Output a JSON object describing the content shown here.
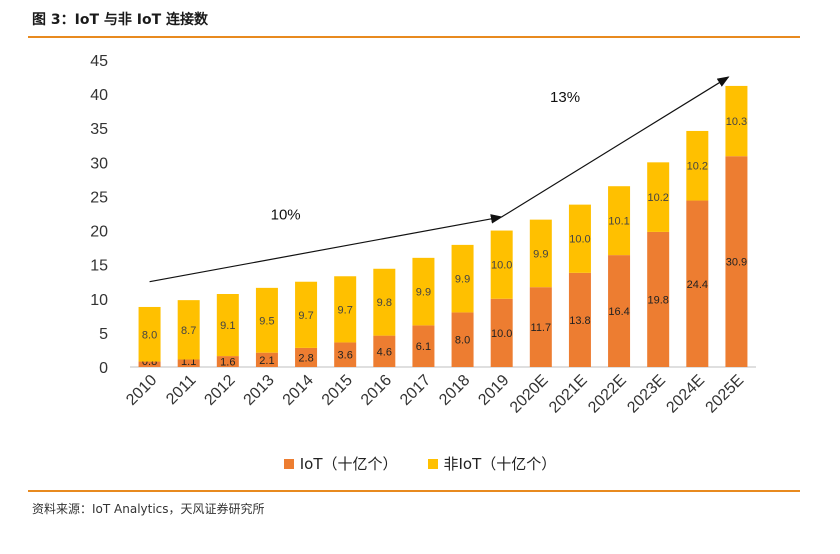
{
  "header": {
    "title": "图 3：IoT 与非 IoT 连接数"
  },
  "footer": {
    "source": "资料来源：IoT Analytics，天风证券研究所"
  },
  "colors": {
    "iot": "#ED7D31",
    "non_iot": "#FFC000",
    "rule": "#E88A1F"
  },
  "chart_data": {
    "type": "bar",
    "stacked": true,
    "categories": [
      "2010",
      "2011",
      "2012",
      "2013",
      "2014",
      "2015",
      "2016",
      "2017",
      "2018",
      "2019",
      "2020E",
      "2021E",
      "2022E",
      "2023E",
      "2024E",
      "2025E"
    ],
    "series": [
      {
        "name": "IoT（十亿个）",
        "values": [
          0.8,
          1.1,
          1.6,
          2.1,
          2.8,
          3.6,
          4.6,
          6.1,
          8.0,
          10.0,
          11.7,
          13.8,
          16.4,
          19.8,
          24.4,
          30.9
        ],
        "labels": [
          "0.8",
          "1.1",
          "1.6",
          "2.1",
          "2.8",
          "3.6",
          "4.6",
          "6.1",
          "8.0",
          "10.0",
          "11.7",
          "13.8",
          "16.4",
          "19.8",
          "24.4",
          "30.9"
        ]
      },
      {
        "name": "非IoT（十亿个）",
        "values": [
          8.0,
          8.7,
          9.1,
          9.5,
          9.7,
          9.7,
          9.8,
          9.9,
          9.9,
          10.0,
          9.9,
          10.0,
          10.1,
          10.2,
          10.2,
          10.3
        ],
        "labels": [
          "8.0",
          "8.7",
          "9.1",
          "9.5",
          "9.7",
          "9.7",
          "9.8",
          "9.9",
          "9.9",
          "10.0",
          "9.9",
          "10.0",
          "10.1",
          "10.2",
          "10.2",
          "10.3"
        ]
      }
    ],
    "y_ticks": [
      "0",
      "5",
      "10",
      "15",
      "20",
      "25",
      "30",
      "35",
      "40",
      "45"
    ],
    "ylim": [
      0,
      45
    ],
    "annotations": [
      {
        "text": "10%",
        "arrow_from": [
          "2010",
          12.5
        ],
        "arrow_to": [
          "2019",
          22
        ]
      },
      {
        "text": "13%",
        "arrow_from": [
          "2019",
          22
        ],
        "arrow_to": [
          "2025E",
          42.5
        ]
      }
    ],
    "legend_position": "bottom",
    "grid": false
  }
}
